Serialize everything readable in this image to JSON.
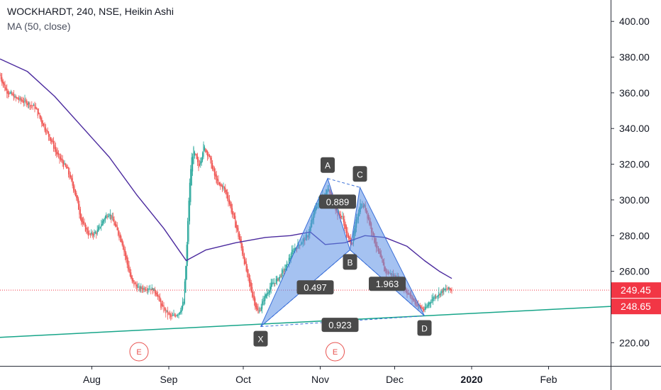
{
  "header": {
    "title": "WOCKHARDT, 240, NSE, Heikin Ashi",
    "indicator": "MA (50, close)"
  },
  "colors": {
    "up": "#26a69a",
    "down": "#ef5350",
    "ma": "#4b2a9e",
    "trendline": "#17a589",
    "pattern_fill": "#5b8fe6",
    "pattern_stroke": "#3a6fd8",
    "label_bg": "#4a4a4a",
    "price_tag": "#f23645",
    "event": "#e8514e",
    "axis_text": "#131722"
  },
  "chart_data": {
    "type": "candlestick",
    "y_axis": {
      "ticks": [
        "400.00",
        "380.00",
        "360.00",
        "340.00",
        "320.00",
        "300.00",
        "280.00",
        "260.00",
        "220.00"
      ],
      "range": [
        207,
        412
      ]
    },
    "x_axis": {
      "ticks": [
        "Aug",
        "Sep",
        "Oct",
        "Nov",
        "Dec",
        "2020",
        "Feb"
      ],
      "range": [
        "2019-06-25",
        "2020-02-26"
      ]
    },
    "price_tags": [
      {
        "value": 249.45,
        "label": "249.45"
      },
      {
        "value": 248.65,
        "label": "248.65"
      }
    ],
    "price_path": [
      [
        "2019-06-25",
        370
      ],
      [
        "2019-06-27",
        362
      ],
      [
        "2019-07-01",
        357
      ],
      [
        "2019-07-05",
        355
      ],
      [
        "2019-07-09",
        352
      ],
      [
        "2019-07-12",
        343
      ],
      [
        "2019-07-16",
        332
      ],
      [
        "2019-07-18",
        325
      ],
      [
        "2019-07-22",
        317
      ],
      [
        "2019-07-25",
        305
      ],
      [
        "2019-07-28",
        287
      ],
      [
        "2019-07-31",
        280
      ],
      [
        "2019-08-03",
        282
      ],
      [
        "2019-08-06",
        290
      ],
      [
        "2019-08-08",
        293
      ],
      [
        "2019-08-11",
        283
      ],
      [
        "2019-08-13",
        277
      ],
      [
        "2019-08-15",
        265
      ],
      [
        "2019-08-17",
        254
      ],
      [
        "2019-08-20",
        250
      ],
      [
        "2019-08-24",
        251
      ],
      [
        "2019-08-27",
        248
      ],
      [
        "2019-08-29",
        240
      ],
      [
        "2019-09-02",
        234
      ],
      [
        "2019-09-05",
        237
      ],
      [
        "2019-09-07",
        243
      ],
      [
        "2019-09-08",
        268
      ],
      [
        "2019-09-09",
        300
      ],
      [
        "2019-09-10",
        322
      ],
      [
        "2019-09-11",
        328
      ],
      [
        "2019-09-13",
        318
      ],
      [
        "2019-09-15",
        330
      ],
      [
        "2019-09-17",
        325
      ],
      [
        "2019-09-19",
        315
      ],
      [
        "2019-09-21",
        308
      ],
      [
        "2019-09-23",
        307
      ],
      [
        "2019-09-25",
        300
      ],
      [
        "2019-09-27",
        290
      ],
      [
        "2019-09-29",
        280
      ],
      [
        "2019-10-01",
        268
      ],
      [
        "2019-10-03",
        255
      ],
      [
        "2019-10-05",
        245
      ],
      [
        "2019-10-07",
        236
      ],
      [
        "2019-10-09",
        244
      ],
      [
        "2019-10-12",
        252
      ],
      [
        "2019-10-15",
        256
      ],
      [
        "2019-10-18",
        262
      ],
      [
        "2019-10-21",
        272
      ],
      [
        "2019-10-24",
        276
      ],
      [
        "2019-10-27",
        280
      ],
      [
        "2019-10-30",
        296
      ],
      [
        "2019-11-02",
        303
      ],
      [
        "2019-11-04",
        306
      ],
      [
        "2019-11-06",
        300
      ],
      [
        "2019-11-08",
        292
      ],
      [
        "2019-11-10",
        290
      ],
      [
        "2019-11-12",
        278
      ],
      [
        "2019-11-14",
        276
      ],
      [
        "2019-11-15",
        285
      ],
      [
        "2019-11-17",
        298
      ],
      [
        "2019-11-19",
        296
      ],
      [
        "2019-11-21",
        286
      ],
      [
        "2019-11-23",
        276
      ],
      [
        "2019-11-25",
        268
      ],
      [
        "2019-11-27",
        260
      ],
      [
        "2019-11-30",
        258
      ],
      [
        "2019-12-03",
        255
      ],
      [
        "2019-12-06",
        248
      ],
      [
        "2019-12-09",
        243
      ],
      [
        "2019-12-11",
        240
      ],
      [
        "2019-12-13",
        238
      ],
      [
        "2019-12-15",
        243
      ],
      [
        "2019-12-17",
        246
      ],
      [
        "2019-12-20",
        249
      ],
      [
        "2019-12-22",
        250
      ],
      [
        "2019-12-24",
        249.45
      ]
    ],
    "ma_50": [
      [
        "2019-06-25",
        379
      ],
      [
        "2019-07-06",
        372
      ],
      [
        "2019-07-17",
        358
      ],
      [
        "2019-07-28",
        341
      ],
      [
        "2019-08-08",
        324
      ],
      [
        "2019-08-19",
        303
      ],
      [
        "2019-08-30",
        284
      ],
      [
        "2019-09-08",
        266
      ],
      [
        "2019-09-16",
        272
      ],
      [
        "2019-09-28",
        276
      ],
      [
        "2019-10-10",
        279
      ],
      [
        "2019-10-20",
        280
      ],
      [
        "2019-10-28",
        282
      ],
      [
        "2019-11-03",
        275
      ],
      [
        "2019-11-11",
        276
      ],
      [
        "2019-11-19",
        280
      ],
      [
        "2019-11-27",
        279
      ],
      [
        "2019-12-06",
        274
      ],
      [
        "2019-12-13",
        266
      ],
      [
        "2019-12-19",
        260
      ],
      [
        "2019-12-24",
        256
      ]
    ],
    "trendline": [
      [
        "2019-06-25",
        223
      ],
      [
        "2020-01-31",
        238.5
      ]
    ],
    "pattern": {
      "points": [
        {
          "label": "X",
          "date": "2019-10-08",
          "value": 229
        },
        {
          "label": "A",
          "date": "2019-11-04",
          "value": 312
        },
        {
          "label": "B",
          "date": "2019-11-13",
          "value": 272
        },
        {
          "label": "C",
          "date": "2019-11-17",
          "value": 307
        },
        {
          "label": "D",
          "date": "2019-12-13",
          "value": 235
        }
      ],
      "ratios": [
        {
          "label": "0.497",
          "date": "2019-10-30",
          "value": 251
        },
        {
          "label": "0.889",
          "date": "2019-11-08",
          "value": 299
        },
        {
          "label": "1.963",
          "date": "2019-11-28",
          "value": 253
        },
        {
          "label": "0.923",
          "date": "2019-11-09",
          "value": 230
        }
      ]
    },
    "events": [
      {
        "label": "E",
        "date": "2019-08-20"
      },
      {
        "label": "E",
        "date": "2019-11-07"
      }
    ]
  }
}
